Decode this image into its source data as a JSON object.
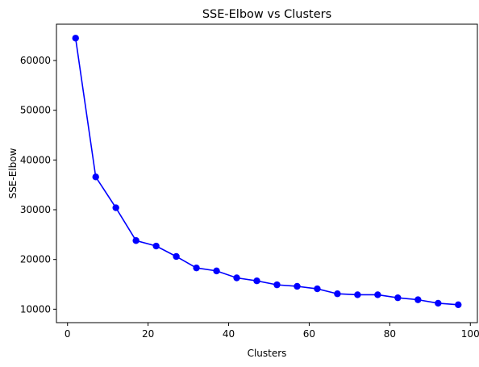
{
  "chart_data": {
    "type": "line",
    "title": "SSE-Elbow vs Clusters",
    "xlabel": "Clusters",
    "ylabel": "SSE-Elbow",
    "xlim": [
      -2.75,
      101.75
    ],
    "ylim": [
      7300,
      67300
    ],
    "xticks": [
      0,
      20,
      40,
      60,
      80,
      100
    ],
    "yticks": [
      10000,
      20000,
      30000,
      40000,
      50000,
      60000
    ],
    "grid": false,
    "series": [
      {
        "color": "#0000ff",
        "marker": "circle",
        "x": [
          2,
          7,
          12,
          17,
          22,
          27,
          32,
          37,
          42,
          47,
          52,
          57,
          62,
          67,
          72,
          77,
          82,
          87,
          92,
          97
        ],
        "y": [
          64500,
          36600,
          30400,
          23800,
          22700,
          20600,
          18300,
          17700,
          16300,
          15700,
          14900,
          14600,
          14100,
          13100,
          12900,
          12900,
          12300,
          11900,
          11200,
          10900
        ]
      }
    ]
  }
}
